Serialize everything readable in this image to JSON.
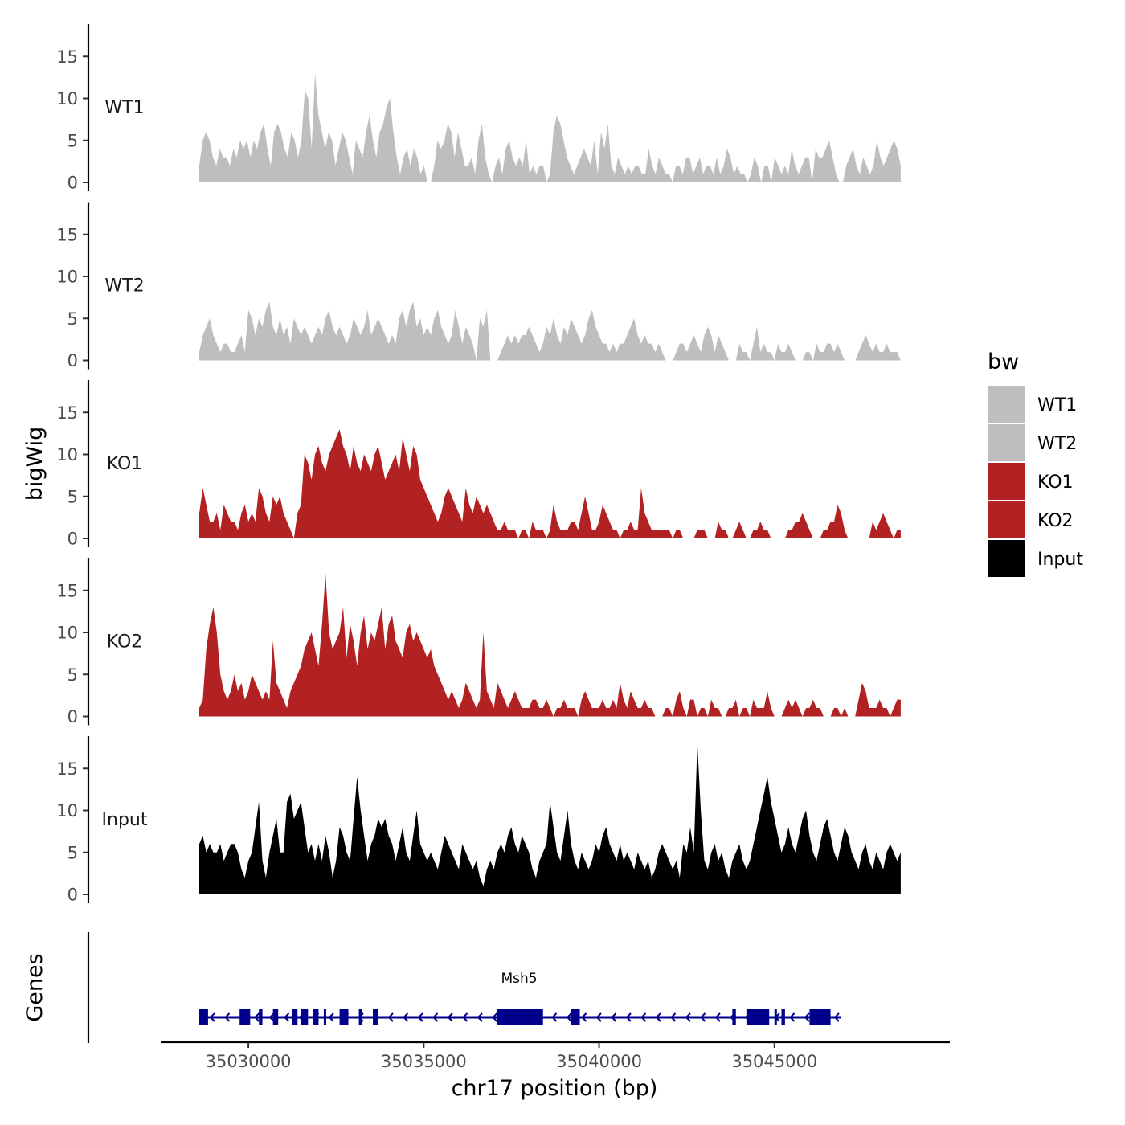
{
  "chart_data": {
    "type": "area",
    "ylabel": "bigWig",
    "genes_label": "Genes",
    "xlabel": "chr17 position (bp)",
    "x_ticks": [
      35030000,
      35035000,
      35040000,
      35045000
    ],
    "x_tick_labels": [
      "35030000",
      "35035000",
      "35040000",
      "35045000"
    ],
    "xlim": [
      35027500,
      35050000
    ],
    "data_range": [
      35028600,
      35048600
    ],
    "y_ticks": [
      0,
      5,
      10,
      15
    ],
    "y_tick_labels": [
      "0",
      "5",
      "10",
      "15"
    ],
    "ylim": [
      0,
      19
    ],
    "legend": {
      "title": "bw",
      "entries": [
        {
          "label": "WT1",
          "color": "#BEBEBE"
        },
        {
          "label": "WT2",
          "color": "#BEBEBE"
        },
        {
          "label": "KO1",
          "color": "#B22222"
        },
        {
          "label": "KO2",
          "color": "#B22222"
        },
        {
          "label": "Input",
          "color": "#000000"
        }
      ]
    },
    "series": [
      {
        "name": "WT1",
        "color": "#BEBEBE",
        "values": [
          2,
          5,
          6,
          5,
          3,
          2,
          4,
          3,
          3,
          2,
          4,
          3,
          5,
          4,
          5,
          3,
          5,
          4,
          6,
          7,
          4,
          2,
          6,
          7,
          6,
          4,
          3,
          6,
          5,
          3,
          5,
          11,
          10,
          4,
          13,
          8,
          6,
          4,
          6,
          5,
          2,
          4,
          6,
          5,
          3,
          1,
          5,
          4,
          3,
          6,
          8,
          5,
          3,
          6,
          7,
          9,
          10,
          6,
          3,
          1,
          3,
          4,
          2,
          4,
          3,
          1,
          2,
          0,
          0,
          2,
          5,
          4,
          5,
          7,
          6,
          3,
          6,
          4,
          2,
          2,
          3,
          1,
          5,
          7,
          3,
          1,
          0,
          2,
          3,
          1,
          4,
          5,
          3,
          2,
          3,
          2,
          5,
          1,
          2,
          1,
          2,
          2,
          0,
          1,
          6,
          8,
          7,
          5,
          3,
          2,
          1,
          2,
          3,
          4,
          3,
          2,
          5,
          1,
          6,
          4,
          7,
          2,
          1,
          3,
          2,
          1,
          2,
          1,
          2,
          2,
          1,
          1,
          4,
          2,
          1,
          3,
          2,
          1,
          1,
          0,
          2,
          2,
          1,
          3,
          3,
          1,
          2,
          3,
          1,
          2,
          2,
          1,
          3,
          1,
          2,
          4,
          3,
          1,
          2,
          1,
          1,
          0,
          1,
          3,
          2,
          0,
          2,
          2,
          0,
          3,
          2,
          1,
          2,
          1,
          4,
          2,
          1,
          2,
          3,
          3,
          0,
          4,
          3,
          3,
          4,
          5,
          3,
          1,
          0,
          0,
          2,
          3,
          4,
          2,
          1,
          3,
          2,
          1,
          2,
          5,
          3,
          2,
          3,
          4,
          5,
          4,
          2
        ]
      },
      {
        "name": "WT2",
        "color": "#BEBEBE",
        "values": [
          1,
          3,
          4,
          5,
          3,
          2,
          1,
          2,
          2,
          1,
          1,
          2,
          3,
          1,
          6,
          5,
          3,
          5,
          4,
          6,
          7,
          4,
          3,
          5,
          3,
          4,
          2,
          5,
          4,
          3,
          4,
          3,
          2,
          3,
          4,
          3,
          5,
          6,
          4,
          3,
          4,
          3,
          2,
          3,
          5,
          4,
          3,
          4,
          6,
          3,
          4,
          5,
          4,
          3,
          2,
          3,
          2,
          5,
          6,
          4,
          6,
          7,
          4,
          5,
          3,
          4,
          3,
          5,
          6,
          4,
          3,
          2,
          3,
          6,
          4,
          2,
          4,
          3,
          2,
          0,
          5,
          4,
          6,
          0,
          0,
          0,
          1,
          2,
          3,
          2,
          3,
          2,
          3,
          3,
          4,
          3,
          2,
          1,
          2,
          4,
          3,
          5,
          3,
          2,
          4,
          3,
          5,
          4,
          3,
          2,
          3,
          5,
          6,
          4,
          3,
          2,
          2,
          1,
          2,
          1,
          2,
          2,
          3,
          4,
          5,
          3,
          2,
          3,
          2,
          2,
          1,
          2,
          1,
          0,
          0,
          0,
          1,
          2,
          2,
          1,
          2,
          3,
          2,
          1,
          3,
          4,
          3,
          1,
          3,
          2,
          1,
          0,
          0,
          0,
          2,
          1,
          1,
          0,
          2,
          4,
          1,
          2,
          1,
          1,
          0,
          2,
          1,
          1,
          2,
          1,
          0,
          0,
          0,
          1,
          1,
          0,
          2,
          1,
          1,
          2,
          2,
          1,
          2,
          1,
          0,
          0,
          0,
          0,
          1,
          2,
          3,
          2,
          1,
          2,
          1,
          1,
          2,
          1,
          1,
          1,
          0
        ]
      },
      {
        "name": "KO1",
        "color": "#B22222",
        "values": [
          3,
          6,
          4,
          2,
          2,
          3,
          1,
          4,
          3,
          2,
          2,
          1,
          3,
          4,
          2,
          3,
          2,
          6,
          5,
          3,
          2,
          5,
          4,
          5,
          3,
          2,
          1,
          0,
          3,
          4,
          10,
          9,
          7,
          10,
          11,
          9,
          8,
          10,
          11,
          12,
          13,
          11,
          10,
          8,
          11,
          9,
          8,
          10,
          9,
          8,
          10,
          11,
          9,
          7,
          8,
          9,
          10,
          8,
          12,
          10,
          8,
          11,
          10,
          7,
          6,
          5,
          4,
          3,
          2,
          3,
          5,
          6,
          5,
          4,
          3,
          2,
          6,
          4,
          3,
          5,
          4,
          3,
          4,
          3,
          2,
          1,
          1,
          2,
          1,
          1,
          1,
          0,
          1,
          1,
          0,
          2,
          1,
          1,
          1,
          0,
          1,
          4,
          2,
          1,
          1,
          1,
          2,
          2,
          1,
          3,
          5,
          3,
          1,
          1,
          2,
          4,
          3,
          2,
          1,
          1,
          0,
          1,
          1,
          2,
          1,
          1,
          6,
          3,
          2,
          1,
          1,
          1,
          1,
          1,
          1,
          0,
          1,
          1,
          0,
          0,
          0,
          0,
          1,
          1,
          1,
          0,
          0,
          0,
          2,
          1,
          1,
          0,
          0,
          1,
          2,
          1,
          0,
          0,
          1,
          1,
          2,
          1,
          1,
          0,
          0,
          0,
          0,
          0,
          1,
          1,
          2,
          2,
          3,
          2,
          1,
          0,
          0,
          0,
          1,
          1,
          2,
          2,
          4,
          3,
          1,
          0,
          0,
          0,
          0,
          0,
          0,
          0,
          2,
          1,
          2,
          3,
          2,
          1,
          0,
          1,
          1
        ]
      },
      {
        "name": "KO2",
        "color": "#B22222",
        "values": [
          1,
          2,
          8,
          11,
          13,
          10,
          5,
          3,
          2,
          3,
          5,
          3,
          4,
          2,
          3,
          5,
          4,
          3,
          2,
          3,
          2,
          9,
          4,
          3,
          2,
          1,
          3,
          4,
          5,
          6,
          8,
          9,
          10,
          8,
          6,
          11,
          17,
          10,
          8,
          9,
          10,
          13,
          7,
          11,
          9,
          6,
          10,
          12,
          8,
          10,
          9,
          11,
          13,
          8,
          11,
          12,
          9,
          8,
          7,
          10,
          11,
          9,
          10,
          9,
          8,
          7,
          8,
          6,
          5,
          4,
          3,
          2,
          3,
          2,
          1,
          2,
          4,
          3,
          2,
          1,
          2,
          10,
          3,
          2,
          1,
          4,
          3,
          2,
          1,
          2,
          3,
          2,
          1,
          1,
          1,
          2,
          2,
          1,
          1,
          2,
          1,
          0,
          1,
          1,
          2,
          1,
          1,
          1,
          0,
          2,
          3,
          2,
          1,
          1,
          1,
          2,
          1,
          1,
          2,
          1,
          4,
          2,
          1,
          3,
          2,
          1,
          1,
          2,
          1,
          1,
          0,
          0,
          0,
          1,
          1,
          0,
          2,
          3,
          1,
          0,
          2,
          2,
          0,
          1,
          1,
          0,
          2,
          1,
          1,
          0,
          0,
          1,
          1,
          2,
          0,
          1,
          1,
          0,
          2,
          1,
          1,
          1,
          3,
          1,
          0,
          0,
          0,
          1,
          2,
          1,
          2,
          1,
          0,
          1,
          1,
          2,
          1,
          1,
          0,
          0,
          0,
          1,
          1,
          0,
          1,
          0,
          0,
          0,
          2,
          4,
          3,
          1,
          1,
          1,
          2,
          1,
          1,
          0,
          1,
          2,
          2
        ]
      },
      {
        "name": "Input",
        "color": "#000000",
        "values": [
          6,
          7,
          5,
          6,
          5,
          5,
          6,
          4,
          5,
          6,
          6,
          5,
          3,
          2,
          4,
          5,
          8,
          11,
          4,
          2,
          5,
          7,
          9,
          5,
          5,
          11,
          12,
          9,
          10,
          11,
          8,
          5,
          6,
          4,
          6,
          4,
          7,
          5,
          2,
          4,
          8,
          7,
          5,
          4,
          9,
          14,
          10,
          7,
          4,
          6,
          7,
          9,
          8,
          9,
          7,
          6,
          4,
          6,
          8,
          5,
          4,
          7,
          10,
          6,
          5,
          4,
          5,
          4,
          3,
          5,
          7,
          6,
          5,
          4,
          3,
          6,
          5,
          4,
          3,
          4,
          2,
          1,
          3,
          4,
          3,
          5,
          6,
          5,
          7,
          8,
          6,
          5,
          7,
          6,
          5,
          3,
          2,
          4,
          5,
          6,
          11,
          8,
          5,
          4,
          7,
          10,
          6,
          4,
          3,
          5,
          4,
          3,
          4,
          6,
          5,
          7,
          8,
          6,
          5,
          4,
          6,
          4,
          5,
          4,
          3,
          5,
          4,
          3,
          4,
          2,
          3,
          5,
          6,
          5,
          4,
          3,
          4,
          2,
          6,
          5,
          8,
          5,
          18,
          10,
          4,
          3,
          5,
          6,
          4,
          5,
          3,
          2,
          4,
          5,
          6,
          4,
          3,
          4,
          6,
          8,
          10,
          12,
          14,
          11,
          9,
          7,
          5,
          6,
          8,
          6,
          5,
          7,
          9,
          10,
          7,
          5,
          4,
          6,
          8,
          9,
          7,
          5,
          4,
          6,
          8,
          7,
          5,
          4,
          3,
          5,
          6,
          4,
          3,
          5,
          4,
          3,
          5,
          6,
          5,
          4,
          5
        ]
      }
    ],
    "gene_track": {
      "gene_name": "Msh5",
      "color": "#00008B",
      "strand": "-",
      "start": 35028600,
      "end": 35046900,
      "exons": [
        [
          35028600,
          35028850
        ],
        [
          35029750,
          35030050
        ],
        [
          35030300,
          35030400
        ],
        [
          35030700,
          35030850
        ],
        [
          35031250,
          35031400
        ],
        [
          35031500,
          35031700
        ],
        [
          35031850,
          35032000
        ],
        [
          35032150,
          35032200
        ],
        [
          35032600,
          35032850
        ],
        [
          35033150,
          35033250
        ],
        [
          35033550,
          35033700
        ],
        [
          35037100,
          35038400
        ],
        [
          35039200,
          35039450
        ],
        [
          35043800,
          35043900
        ],
        [
          35044200,
          35044850
        ],
        [
          35045000,
          35045050
        ],
        [
          35045200,
          35045300
        ],
        [
          35046000,
          35046600
        ]
      ]
    }
  }
}
